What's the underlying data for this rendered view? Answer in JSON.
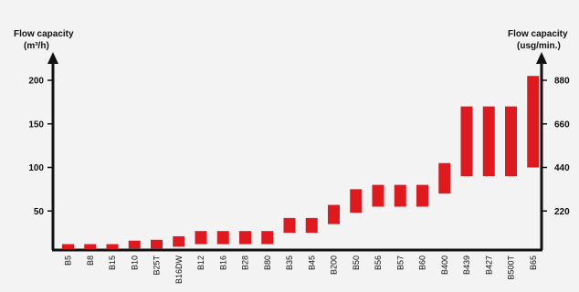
{
  "chart_data": {
    "type": "bar",
    "subtype": "floating-range",
    "left_axis": {
      "title_line1": "Flow capacity",
      "title_line2": "(m³/h)",
      "ticks": [
        50,
        100,
        150,
        200
      ],
      "ylim": [
        0,
        210
      ]
    },
    "right_axis": {
      "title_line1": "Flow capacity",
      "title_line2": "(usg/min.)",
      "ticks": [
        {
          "label": "220",
          "at_left_value": 50
        },
        {
          "label": "440",
          "at_left_value": 100
        },
        {
          "label": "660",
          "at_left_value": 150
        },
        {
          "label": "880",
          "at_left_value": 200
        }
      ]
    },
    "bar_color": "#e0191f",
    "categories": [
      "B5",
      "B8",
      "B15",
      "B10",
      "B25T",
      "B16DW",
      "B12",
      "B16",
      "B28",
      "B80",
      "B35",
      "B45",
      "B200",
      "B50",
      "B56",
      "B57",
      "B60",
      "B400",
      "B439",
      "B427",
      "B500T",
      "B65"
    ],
    "series": [
      {
        "low": [
          6,
          6,
          6,
          7,
          7,
          9,
          12,
          12,
          12,
          12,
          25,
          25,
          35,
          48,
          55,
          55,
          55,
          70,
          90,
          90,
          90,
          100
        ],
        "high": [
          12,
          12,
          12,
          16,
          17,
          21,
          27,
          27,
          27,
          27,
          42,
          42,
          57,
          75,
          80,
          80,
          80,
          105,
          170,
          170,
          170,
          205
        ]
      }
    ]
  }
}
